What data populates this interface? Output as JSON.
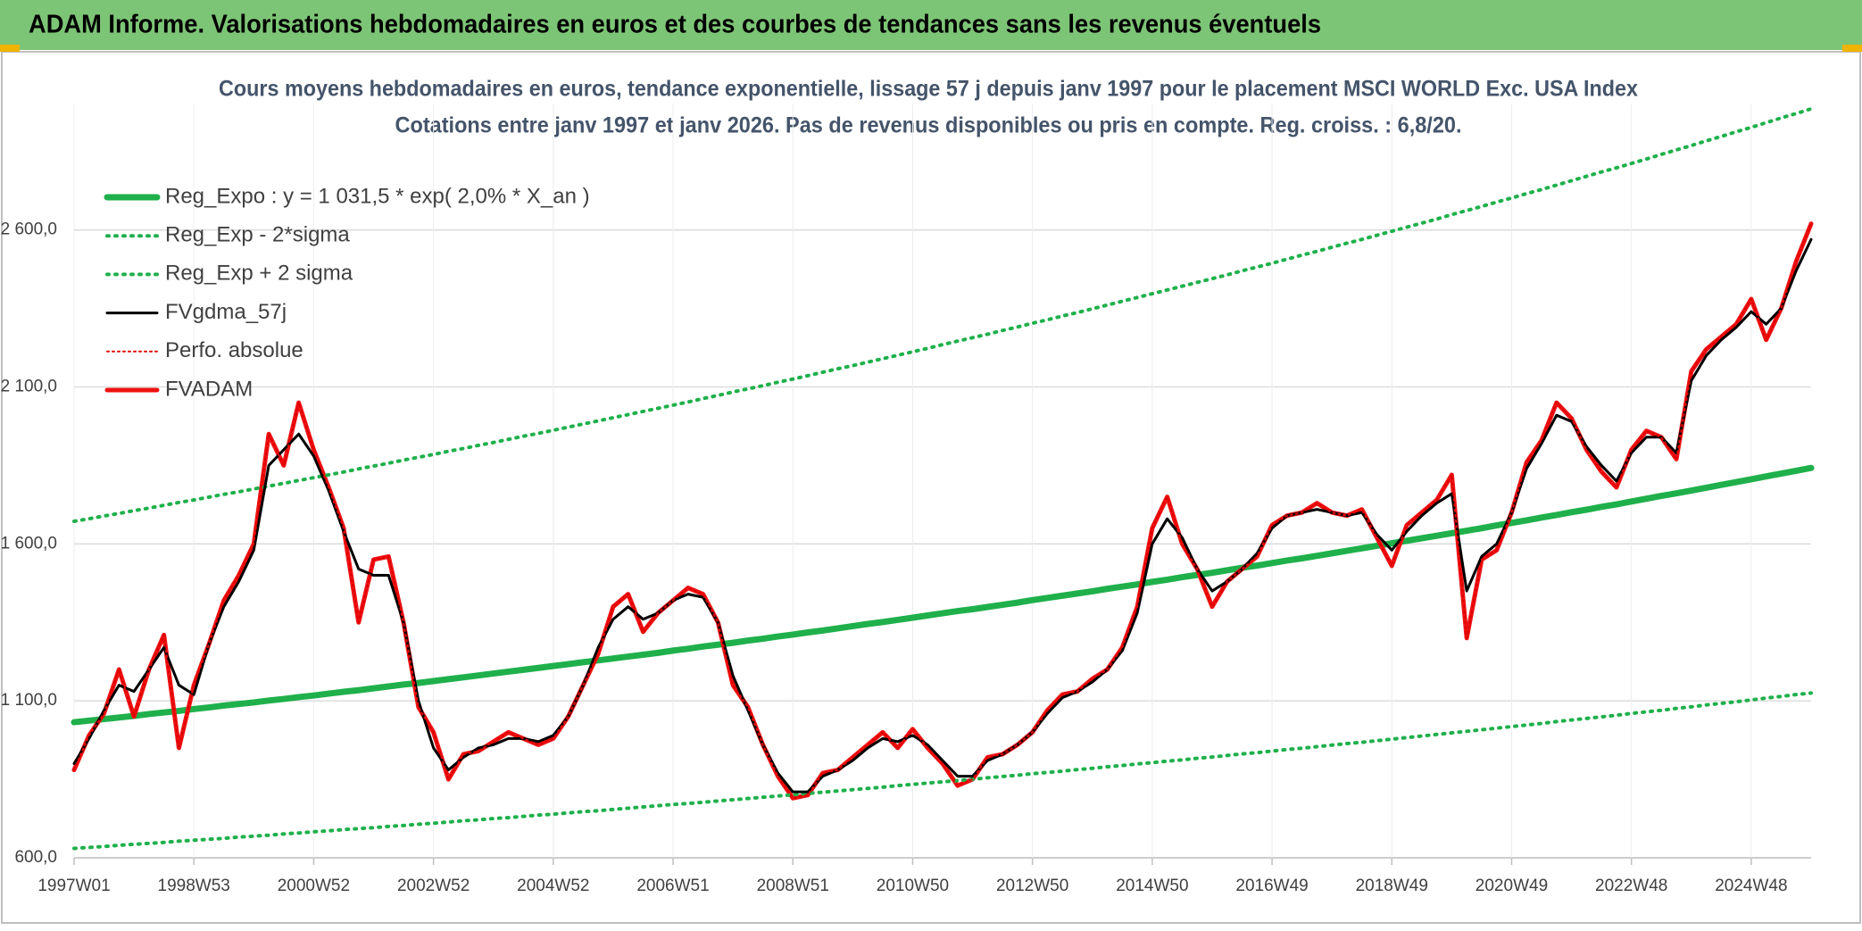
{
  "header": {
    "title": "ADAM Informe. Valorisations hebdomadaires en euros et des courbes de tendances sans les revenus éventuels"
  },
  "chart_data": {
    "type": "line",
    "title": "Cours moyens hebdomadaires en euros, tendance exponentielle, lissage 57 j depuis janv 1997 pour le placement MSCI WORLD Exc. USA Index",
    "subtitle": "Cotations entre janv 1997 et janv 2026. Pas de revenus disponibles ou pris en compte. Reg. croiss. : 6,8/20.",
    "legend": "upper left",
    "grid": true,
    "ylim": [
      600,
      3000
    ],
    "yticks": [
      {
        "value": 600,
        "label": "600,0"
      },
      {
        "value": 1100,
        "label": "1 100,0"
      },
      {
        "value": 1600,
        "label": "1 600,0"
      },
      {
        "value": 2100,
        "label": "2 100,0"
      },
      {
        "value": 2600,
        "label": "2 600,0"
      }
    ],
    "categories": [
      "1997W01",
      null,
      null,
      null,
      null,
      null,
      null,
      null,
      "1998W53",
      null,
      null,
      null,
      null,
      null,
      null,
      null,
      "2000W52",
      null,
      null,
      null,
      null,
      null,
      null,
      null,
      "2002W52",
      null,
      null,
      null,
      null,
      null,
      null,
      null,
      "2004W52",
      null,
      null,
      null,
      null,
      null,
      null,
      null,
      "2006W51",
      null,
      null,
      null,
      null,
      null,
      null,
      null,
      "2008W51",
      null,
      null,
      null,
      null,
      null,
      null,
      null,
      "2010W50",
      null,
      null,
      null,
      null,
      null,
      null,
      null,
      "2012W50",
      null,
      null,
      null,
      null,
      null,
      null,
      null,
      "2014W50",
      null,
      null,
      null,
      null,
      null,
      null,
      null,
      "2016W49",
      null,
      null,
      null,
      null,
      null,
      null,
      null,
      "2018W49",
      null,
      null,
      null,
      null,
      null,
      null,
      null,
      "2020W49",
      null,
      null,
      null,
      null,
      null,
      null,
      null,
      "2022W48",
      null,
      null,
      null,
      null,
      null,
      null,
      null,
      "2024W48",
      null,
      null,
      null,
      null
    ],
    "series": [
      {
        "name": "Reg_Expo : y = 1 031,5 * exp( 2,0% *  X_an )",
        "color": "#1fb04b",
        "style": "solid",
        "width": 7,
        "values": [
          1032,
          1037,
          1042,
          1047,
          1052,
          1058,
          1063,
          1068,
          1074,
          1079,
          1085,
          1090,
          1095,
          1101,
          1106,
          1112,
          1117,
          1123,
          1129,
          1134,
          1140,
          1146,
          1152,
          1157,
          1163,
          1169,
          1175,
          1181,
          1187,
          1193,
          1199,
          1205,
          1211,
          1217,
          1223,
          1229,
          1235,
          1241,
          1247,
          1253,
          1260,
          1266,
          1273,
          1279,
          1285,
          1292,
          1298,
          1305,
          1311,
          1318,
          1324,
          1331,
          1338,
          1345,
          1351,
          1358,
          1365,
          1372,
          1379,
          1386,
          1392,
          1399,
          1406,
          1413,
          1421,
          1428,
          1435,
          1442,
          1449,
          1457,
          1464,
          1471,
          1479,
          1486,
          1494,
          1501,
          1508,
          1516,
          1524,
          1531,
          1539,
          1547,
          1554,
          1562,
          1570,
          1578,
          1586,
          1594,
          1602,
          1610,
          1618,
          1626,
          1634,
          1642,
          1650,
          1659,
          1667,
          1675,
          1684,
          1692,
          1701,
          1709,
          1718,
          1726,
          1735,
          1744,
          1753,
          1761,
          1770,
          1779,
          1788,
          1797,
          1806,
          1815,
          1824,
          1833,
          1842
        ]
      },
      {
        "name": "Reg_Exp - 2*sigma",
        "color": "#1fb04b",
        "style": "dotted",
        "width": 4,
        "values": [
          630,
          633,
          636,
          640,
          643,
          646,
          649,
          653,
          656,
          659,
          662,
          666,
          669,
          672,
          676,
          679,
          683,
          686,
          690,
          693,
          696,
          700,
          703,
          707,
          710,
          714,
          718,
          721,
          725,
          728,
          732,
          736,
          739,
          743,
          747,
          750,
          754,
          758,
          762,
          766,
          770,
          773,
          777,
          781,
          785,
          789,
          793,
          797,
          801,
          805,
          809,
          813,
          817,
          821,
          825,
          830,
          834,
          838,
          842,
          846,
          850,
          855,
          859,
          863,
          868,
          872,
          876,
          881,
          885,
          890,
          894,
          899,
          903,
          908,
          912,
          917,
          921,
          926,
          931,
          935,
          940,
          945,
          949,
          954,
          959,
          964,
          968,
          973,
          978,
          983,
          988,
          993,
          998,
          1003,
          1008,
          1013,
          1018,
          1023,
          1028,
          1034,
          1039,
          1044,
          1049,
          1054,
          1060,
          1065,
          1070,
          1076,
          1081,
          1087,
          1092,
          1097,
          1103,
          1109,
          1114,
          1120,
          1125
        ]
      },
      {
        "name": "Reg_Exp + 2 sigma",
        "color": "#1fb04b",
        "style": "dotted",
        "width": 4,
        "values": [
          1672,
          1680,
          1689,
          1697,
          1706,
          1714,
          1723,
          1732,
          1740,
          1749,
          1758,
          1766,
          1775,
          1784,
          1793,
          1802,
          1811,
          1820,
          1829,
          1839,
          1848,
          1857,
          1867,
          1876,
          1885,
          1895,
          1904,
          1914,
          1923,
          1933,
          1943,
          1952,
          1962,
          1972,
          1982,
          1992,
          2002,
          2012,
          2022,
          2032,
          2042,
          2052,
          2063,
          2073,
          2084,
          2094,
          2104,
          2115,
          2125,
          2136,
          2147,
          2158,
          2168,
          2179,
          2190,
          2201,
          2212,
          2223,
          2235,
          2246,
          2257,
          2268,
          2280,
          2291,
          2303,
          2314,
          2326,
          2337,
          2349,
          2361,
          2373,
          2385,
          2397,
          2409,
          2421,
          2433,
          2445,
          2457,
          2470,
          2482,
          2494,
          2507,
          2520,
          2532,
          2545,
          2558,
          2570,
          2583,
          2596,
          2609,
          2622,
          2635,
          2649,
          2662,
          2675,
          2689,
          2702,
          2716,
          2729,
          2743,
          2757,
          2771,
          2785,
          2798,
          2812,
          2826,
          2841,
          2855,
          2869,
          2884,
          2898,
          2913,
          2927,
          2942,
          2957,
          2971,
          2986
        ]
      },
      {
        "name": "FVgdma_57j",
        "color": "#000000",
        "style": "solid",
        "width": 3,
        "values": [
          900,
          980,
          1070,
          1150,
          1130,
          1200,
          1270,
          1150,
          1120,
          1280,
          1400,
          1480,
          1580,
          1850,
          1900,
          1950,
          1880,
          1770,
          1640,
          1520,
          1500,
          1500,
          1350,
          1100,
          950,
          880,
          920,
          950,
          960,
          980,
          980,
          970,
          990,
          1050,
          1150,
          1270,
          1360,
          1400,
          1360,
          1380,
          1420,
          1440,
          1430,
          1350,
          1180,
          1070,
          960,
          870,
          810,
          810,
          860,
          880,
          910,
          950,
          980,
          970,
          990,
          960,
          910,
          860,
          860,
          910,
          930,
          960,
          1000,
          1060,
          1110,
          1130,
          1160,
          1200,
          1260,
          1380,
          1600,
          1680,
          1620,
          1520,
          1450,
          1480,
          1520,
          1570,
          1650,
          1690,
          1700,
          1710,
          1700,
          1690,
          1700,
          1630,
          1580,
          1640,
          1690,
          1730,
          1760,
          1450,
          1560,
          1600,
          1700,
          1840,
          1920,
          2010,
          1990,
          1910,
          1850,
          1800,
          1890,
          1940,
          1940,
          1890,
          2120,
          2200,
          2250,
          2290,
          2340,
          2300,
          2350,
          2470,
          2570
        ]
      },
      {
        "name": "Perfo. absolue",
        "color": "#e00000",
        "style": "dotted",
        "width": 2,
        "values": [
          880,
          990,
          1060,
          1200,
          1050,
          1200,
          1310,
          950,
          1150,
          1280,
          1420,
          1500,
          1600,
          1950,
          1850,
          2050,
          1900,
          1780,
          1650,
          1350,
          1550,
          1560,
          1350,
          1080,
          1000,
          850,
          930,
          940,
          970,
          1000,
          980,
          960,
          980,
          1050,
          1150,
          1250,
          1400,
          1440,
          1320,
          1380,
          1420,
          1460,
          1440,
          1350,
          1150,
          1080,
          960,
          860,
          790,
          800,
          870,
          880,
          920,
          960,
          1000,
          950,
          1010,
          950,
          900,
          830,
          850,
          920,
          930,
          960,
          1000,
          1070,
          1120,
          1130,
          1170,
          1200,
          1270,
          1400,
          1650,
          1750,
          1600,
          1520,
          1400,
          1480,
          1520,
          1560,
          1660,
          1690,
          1700,
          1730,
          1700,
          1690,
          1710,
          1620,
          1530,
          1660,
          1700,
          1740,
          1820,
          1300,
          1550,
          1580,
          1700,
          1860,
          1930,
          2050,
          2000,
          1900,
          1830,
          1780,
          1900,
          1960,
          1940,
          1870,
          2150,
          2220,
          2260,
          2300,
          2380,
          2250,
          2350,
          2500,
          2620
        ]
      },
      {
        "name": "FVADAM",
        "color": "#ee1111",
        "style": "solid",
        "width": 5,
        "values": [
          880,
          990,
          1060,
          1200,
          1050,
          1200,
          1310,
          950,
          1150,
          1280,
          1420,
          1500,
          1600,
          1950,
          1850,
          2050,
          1900,
          1780,
          1650,
          1350,
          1550,
          1560,
          1350,
          1080,
          1000,
          850,
          930,
          940,
          970,
          1000,
          980,
          960,
          980,
          1050,
          1150,
          1250,
          1400,
          1440,
          1320,
          1380,
          1420,
          1460,
          1440,
          1350,
          1150,
          1080,
          960,
          860,
          790,
          800,
          870,
          880,
          920,
          960,
          1000,
          950,
          1010,
          950,
          900,
          830,
          850,
          920,
          930,
          960,
          1000,
          1070,
          1120,
          1130,
          1170,
          1200,
          1270,
          1400,
          1650,
          1750,
          1600,
          1520,
          1400,
          1480,
          1520,
          1560,
          1660,
          1690,
          1700,
          1730,
          1700,
          1690,
          1710,
          1620,
          1530,
          1660,
          1700,
          1740,
          1820,
          1300,
          1550,
          1580,
          1700,
          1860,
          1930,
          2050,
          2000,
          1900,
          1830,
          1780,
          1900,
          1960,
          1940,
          1870,
          2150,
          2220,
          2260,
          2300,
          2380,
          2250,
          2350,
          2500,
          2620
        ]
      }
    ]
  }
}
